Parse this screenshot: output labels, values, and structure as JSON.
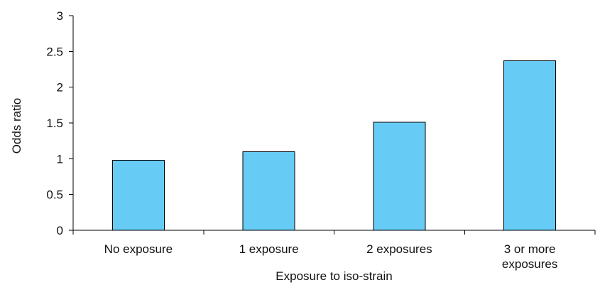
{
  "chart_data": {
    "type": "bar",
    "title": "",
    "xlabel": "Exposure to iso-strain",
    "ylabel": "Odds ratio",
    "categories": [
      "No exposure",
      "1 exposure",
      "2 exposures",
      "3 or more exposures"
    ],
    "category_lines": [
      [
        "No exposure"
      ],
      [
        "1 exposure"
      ],
      [
        "2 exposures"
      ],
      [
        "3 or more",
        "exposures"
      ]
    ],
    "values": [
      0.98,
      1.1,
      1.51,
      2.37
    ],
    "ylim": [
      0,
      3
    ],
    "yticks": [
      0,
      0.5,
      1,
      1.5,
      2,
      2.5,
      3
    ],
    "ytick_labels": [
      "0",
      "0.5",
      "1",
      "1.5",
      "2",
      "2.5",
      "3"
    ],
    "bar_color": "#66CCF5",
    "grid": false,
    "legend": "none"
  }
}
